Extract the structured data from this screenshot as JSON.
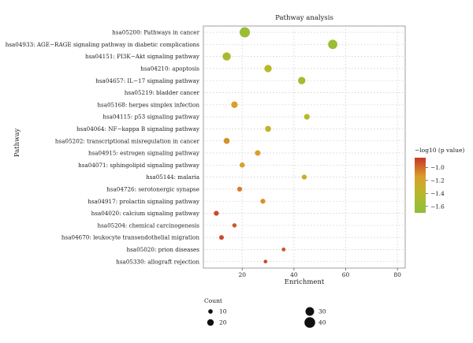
{
  "chart_data": {
    "type": "scatter",
    "title": "Pathway analysis",
    "xlabel": "Enrichment",
    "ylabel": "Pathway",
    "xlim": [
      5,
      83
    ],
    "xticks": [
      20,
      40,
      60,
      80
    ],
    "grid": true,
    "categories": [
      "hsa05200: Pathways in cancer",
      "hsa04933: AGE−RAGE signaling pathway in diabetic complications",
      "hsa04151: PI3K−Akt signaling pathway",
      "hsa04210: apoptosis",
      "hsa04657: IL−17 signaling pathway",
      "hsa05219: bladder cancer",
      "hsa05168: herpes simplex infection",
      "hsa04115: p53 signaling pathway",
      "hsa04064: NF−kappa B signaling pathway",
      "hsa05202: transcriptional misregulation in cancer",
      "hsa04915: estrogen signaling pathway",
      "hsa04071: sphingolipid signaling pathway",
      "hsa05144: malaria",
      "hsa04726: serotonergic synapse",
      "hsa04917: prolactin signaling pathway",
      "hsa04020: calcium signaling pathway",
      "hsa05204: chemical carcinogenesis",
      "hsa04670: leukocyte transendothelial migration",
      "hsa05020: prion diseases",
      "hsa05330: allograft rejection"
    ],
    "points": [
      {
        "pathway": "hsa05200: Pathways in cancer",
        "enrichment": 21,
        "count": 38,
        "neg_log10_p": -1.6
      },
      {
        "pathway": "hsa04933: AGE−RAGE signaling pathway in diabetic complications",
        "enrichment": 55,
        "count": 33,
        "neg_log10_p": -1.6
      },
      {
        "pathway": "hsa04151: PI3K−Akt signaling pathway",
        "enrichment": 14,
        "count": 28,
        "neg_log10_p": -1.5
      },
      {
        "pathway": "hsa04210: apoptosis",
        "enrichment": 30,
        "count": 24,
        "neg_log10_p": -1.4
      },
      {
        "pathway": "hsa04657: IL−17 signaling pathway",
        "enrichment": 43,
        "count": 24,
        "neg_log10_p": -1.5
      },
      {
        "pathway": "hsa05219: bladder cancer",
        "enrichment": null,
        "count": null,
        "neg_log10_p": null
      },
      {
        "pathway": "hsa05168: herpes simplex infection",
        "enrichment": 17,
        "count": 20,
        "neg_log10_p": -1.15
      },
      {
        "pathway": "hsa04115: p53 signaling pathway",
        "enrichment": 45,
        "count": 16,
        "neg_log10_p": -1.4
      },
      {
        "pathway": "hsa04064: NF−kappa B signaling pathway",
        "enrichment": 30,
        "count": 17,
        "neg_log10_p": -1.35
      },
      {
        "pathway": "hsa05202: transcriptional misregulation in cancer",
        "enrichment": 14,
        "count": 17,
        "neg_log10_p": -1.1
      },
      {
        "pathway": "hsa04915: estrogen signaling pathway",
        "enrichment": 26,
        "count": 15,
        "neg_log10_p": -1.15
      },
      {
        "pathway": "hsa04071: sphingolipid signaling pathway",
        "enrichment": 20,
        "count": 13,
        "neg_log10_p": -1.15
      },
      {
        "pathway": "hsa05144: malaria",
        "enrichment": 44,
        "count": 12,
        "neg_log10_p": -1.3
      },
      {
        "pathway": "hsa04726: serotonergic synapse",
        "enrichment": 19,
        "count": 12,
        "neg_log10_p": -1.05
      },
      {
        "pathway": "hsa04917: prolactin signaling pathway",
        "enrichment": 28,
        "count": 12,
        "neg_log10_p": -1.1
      },
      {
        "pathway": "hsa04020: calcium signaling pathway",
        "enrichment": 10,
        "count": 12,
        "neg_log10_p": -0.9
      },
      {
        "pathway": "hsa05204: chemical carcinogenesis",
        "enrichment": 17,
        "count": 9,
        "neg_log10_p": -0.95
      },
      {
        "pathway": "hsa04670: leukocyte transendothelial migration",
        "enrichment": 12,
        "count": 11,
        "neg_log10_p": -0.9
      },
      {
        "pathway": "hsa05020: prion diseases",
        "enrichment": 36,
        "count": 7,
        "neg_log10_p": -0.95
      },
      {
        "pathway": "hsa05330: allograft rejection",
        "enrichment": 29,
        "count": 6,
        "neg_log10_p": -0.9
      }
    ],
    "color_legend": {
      "title": "−log10 (p value)",
      "placement": "right",
      "range": [
        -1.7,
        -0.85
      ],
      "ticks": [
        -1.0,
        -1.2,
        -1.4,
        -1.6
      ],
      "tick_labels": [
        "−1.0",
        "−1.2",
        "−1.4",
        "−1.6"
      ],
      "colors": [
        "#c8372a",
        "#d9a02a",
        "#b8b82a",
        "#8cbf3a"
      ]
    },
    "size_legend": {
      "title": "Count",
      "placement": "bottom-left",
      "values": [
        10,
        20,
        30,
        40
      ],
      "labels": [
        "10",
        "20",
        "30",
        "40"
      ],
      "range": [
        5,
        40
      ]
    }
  }
}
